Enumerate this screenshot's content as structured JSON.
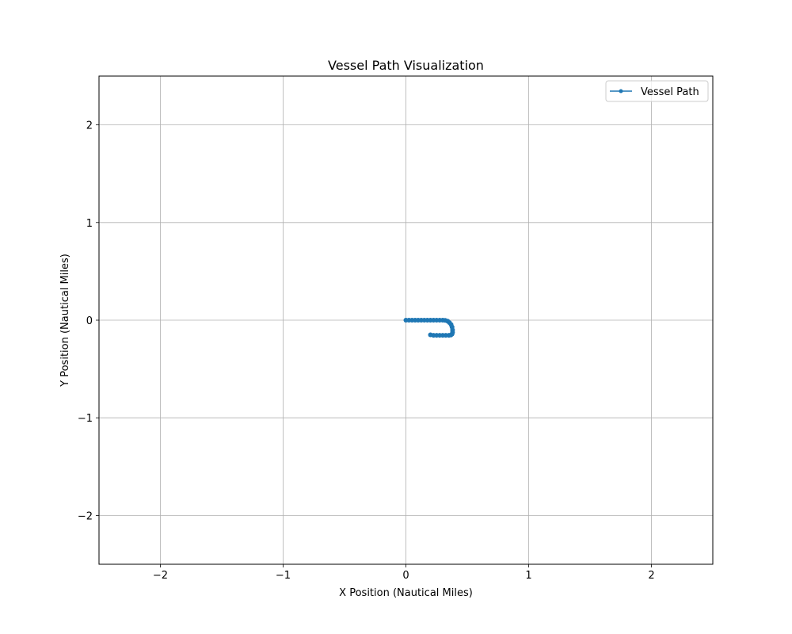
{
  "chart_data": {
    "type": "line",
    "title": "Vessel Path Visualization",
    "xlabel": "X Position (Nautical Miles)",
    "ylabel": "Y Position (Nautical Miles)",
    "xlim": [
      -2.5,
      2.5
    ],
    "ylim": [
      -2.5,
      2.5
    ],
    "xticks": [
      -2,
      -1,
      0,
      1,
      2
    ],
    "yticks": [
      -2,
      -1,
      0,
      1,
      2
    ],
    "xtick_labels": [
      "−2",
      "−1",
      "0",
      "1",
      "2"
    ],
    "ytick_labels": [
      "−2",
      "−1",
      "0",
      "1",
      "2"
    ],
    "grid": true,
    "legend_position": "upper right",
    "series": [
      {
        "name": "Vessel Path",
        "color": "#1f77b4",
        "marker": "circle",
        "x": [
          0.0,
          0.025,
          0.05,
          0.075,
          0.1,
          0.125,
          0.15,
          0.175,
          0.2,
          0.225,
          0.25,
          0.275,
          0.3,
          0.32,
          0.34,
          0.355,
          0.368,
          0.376,
          0.38,
          0.38,
          0.376,
          0.366,
          0.35,
          0.325,
          0.3,
          0.275,
          0.25,
          0.225,
          0.2
        ],
        "y": [
          0.0,
          0.0,
          0.0,
          0.0,
          0.0,
          0.0,
          0.0,
          0.0,
          0.0,
          0.0,
          0.0,
          0.0,
          0.0,
          -0.002,
          -0.01,
          -0.025,
          -0.045,
          -0.07,
          -0.1,
          -0.125,
          -0.142,
          -0.152,
          -0.155,
          -0.155,
          -0.155,
          -0.155,
          -0.155,
          -0.155,
          -0.15
        ]
      }
    ]
  }
}
